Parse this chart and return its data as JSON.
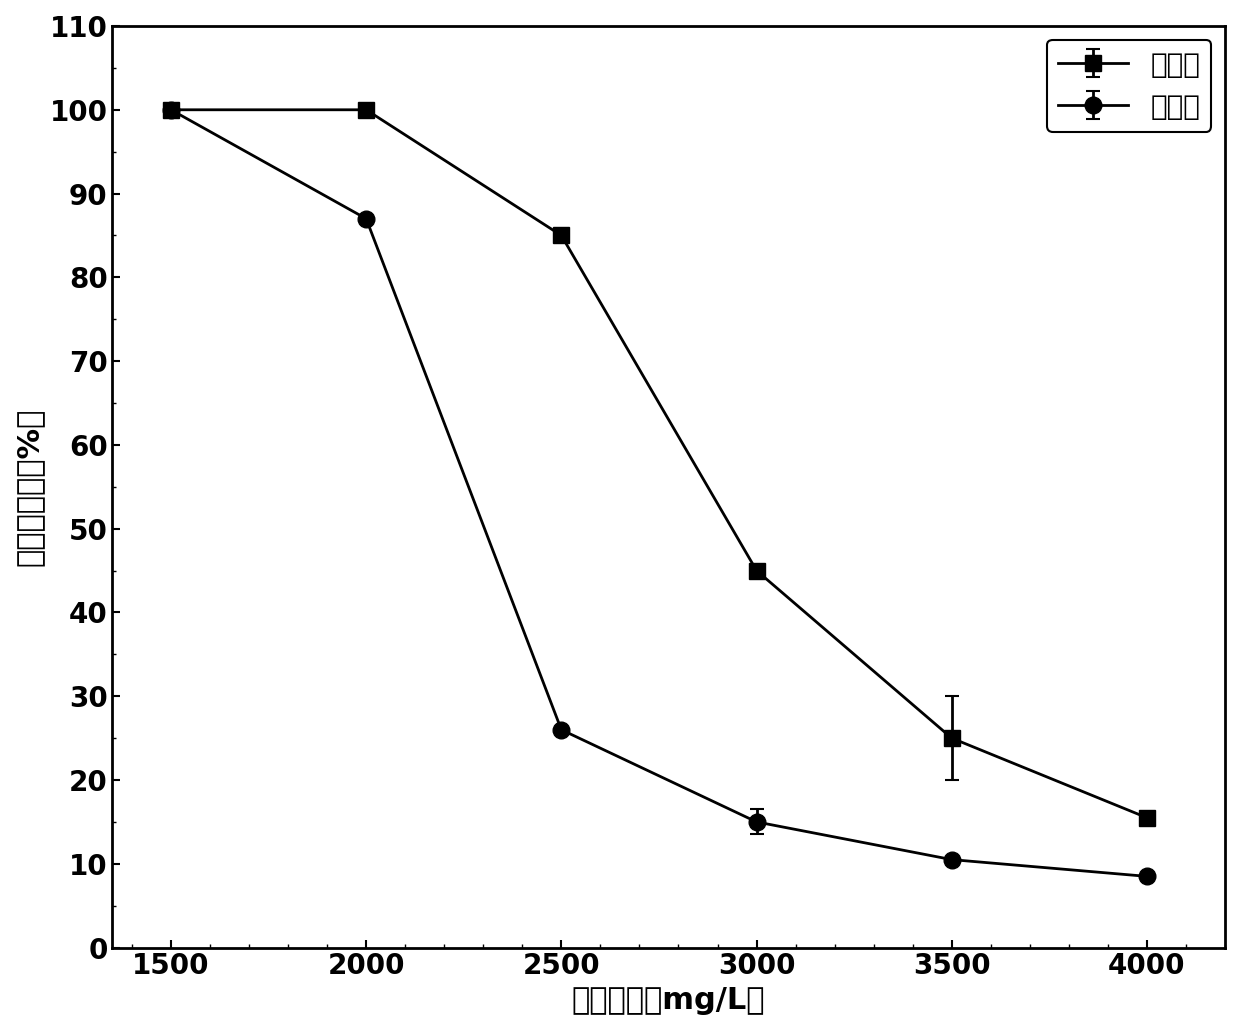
{
  "treatment_x": [
    1500,
    2000,
    2500,
    3000,
    3500,
    4000
  ],
  "treatment_y": [
    100,
    100,
    85,
    45,
    25,
    15.5
  ],
  "treatment_yerr": [
    0,
    0,
    0,
    0,
    5,
    0
  ],
  "control_x": [
    1500,
    2000,
    2500,
    3000,
    3500,
    4000
  ],
  "control_y": [
    100,
    87,
    26,
    15,
    10.5,
    8.5
  ],
  "control_yerr": [
    0,
    0,
    0,
    1.5,
    0,
    0
  ],
  "xlabel": "苯酚浓度（mg/L）",
  "ylabel": "苯酚去除率（%）",
  "legend_treatment": "处理组",
  "legend_control": "对照组",
  "xlim": [
    1350,
    4200
  ],
  "ylim": [
    0,
    110
  ],
  "xticks": [
    1500,
    2000,
    2500,
    3000,
    3500,
    4000
  ],
  "yticks": [
    0,
    10,
    20,
    30,
    40,
    50,
    60,
    70,
    80,
    90,
    100,
    110
  ],
  "line_color": "#000000",
  "marker_size": 12,
  "linewidth": 2.0,
  "title_fontsize": 20,
  "label_fontsize": 22,
  "tick_fontsize": 20,
  "legend_fontsize": 20
}
